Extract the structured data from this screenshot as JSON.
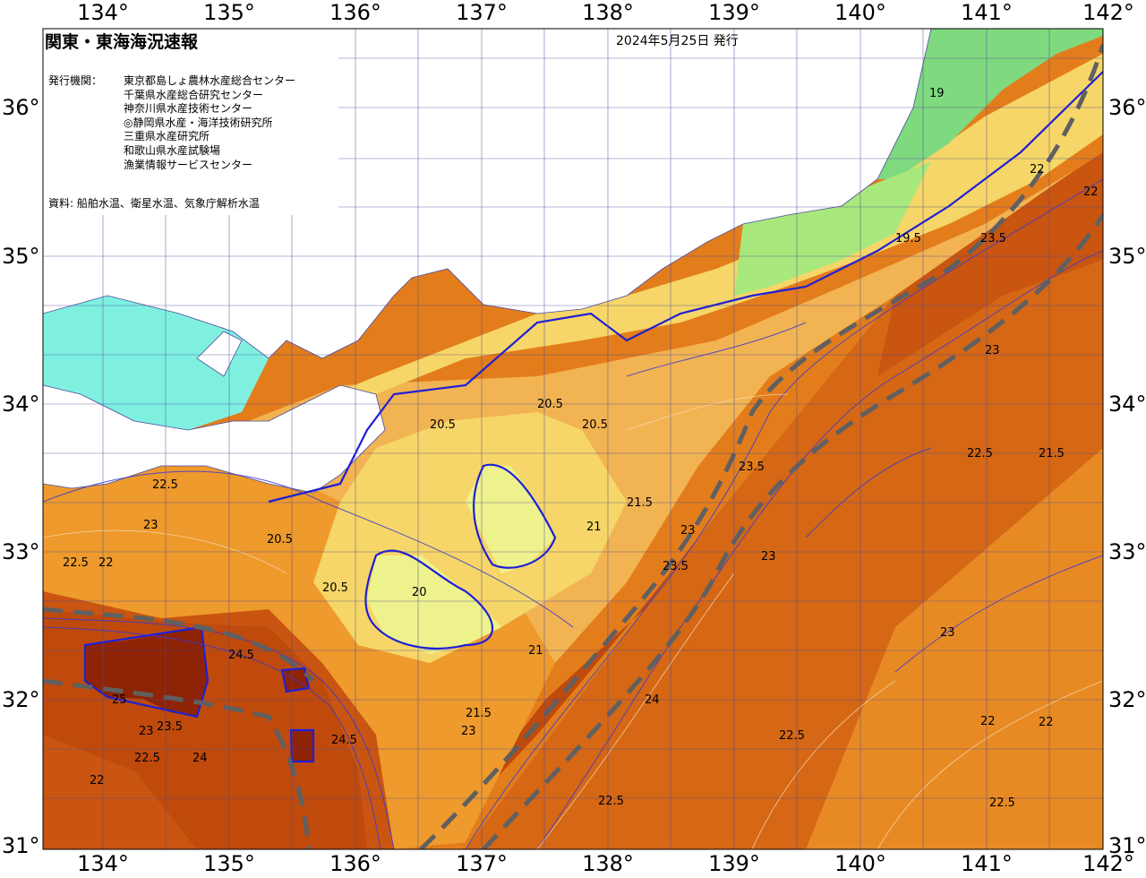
{
  "map": {
    "title": "関東・東海海況速報",
    "issue_date": "2024年5月25日 発行",
    "issuers_label": "発行機関：",
    "issuers": [
      "東京都島しょ農林水産総合センター",
      "千葉県水産総合研究センター",
      "神奈川県水産技術センター",
      "◎静岡県水産・海洋技術研究所",
      "三重県水産研究所",
      "和歌山県水産試験場",
      "漁業情報サービスセンター"
    ],
    "source": "資料: 船舶水温、衛星水温、気象庁解析水温",
    "lon_labels_top": [
      "134°",
      "135°",
      "136°",
      "137°",
      "138°",
      "139°",
      "140°",
      "141°",
      "142°"
    ],
    "lon_labels_bottom": [
      "134°",
      "135°",
      "136°",
      "137°",
      "138°",
      "139°",
      "140°",
      "141°",
      "142°"
    ],
    "lat_labels_left": [
      "36°",
      "35°",
      "34°",
      "33°",
      "32°",
      "31°"
    ],
    "lat_labels_right": [
      "36°",
      "35°",
      "34°",
      "33°",
      "32°",
      "31°"
    ],
    "contour_labels": [
      "19",
      "19.5",
      "20",
      "20.5",
      "21",
      "21.5",
      "22",
      "22.5",
      "23",
      "23.5",
      "24",
      "24.5",
      "25"
    ],
    "colors": {
      "land": "#ffffff",
      "t19": "#7fd97f",
      "t19_5": "#a8e87c",
      "t20": "#eef28c",
      "t20_5": "#f6d668",
      "t21": "#f2b352",
      "t22": "#ee9a2c",
      "t23": "#e37d1b",
      "t23_5": "#d56715",
      "t24": "#bf4a0c",
      "t25": "#8f2305",
      "cold_inlet": "#7ff0e0",
      "isotherm_line": "#1f1fd6",
      "kuroshio_axis": "#606060"
    }
  }
}
